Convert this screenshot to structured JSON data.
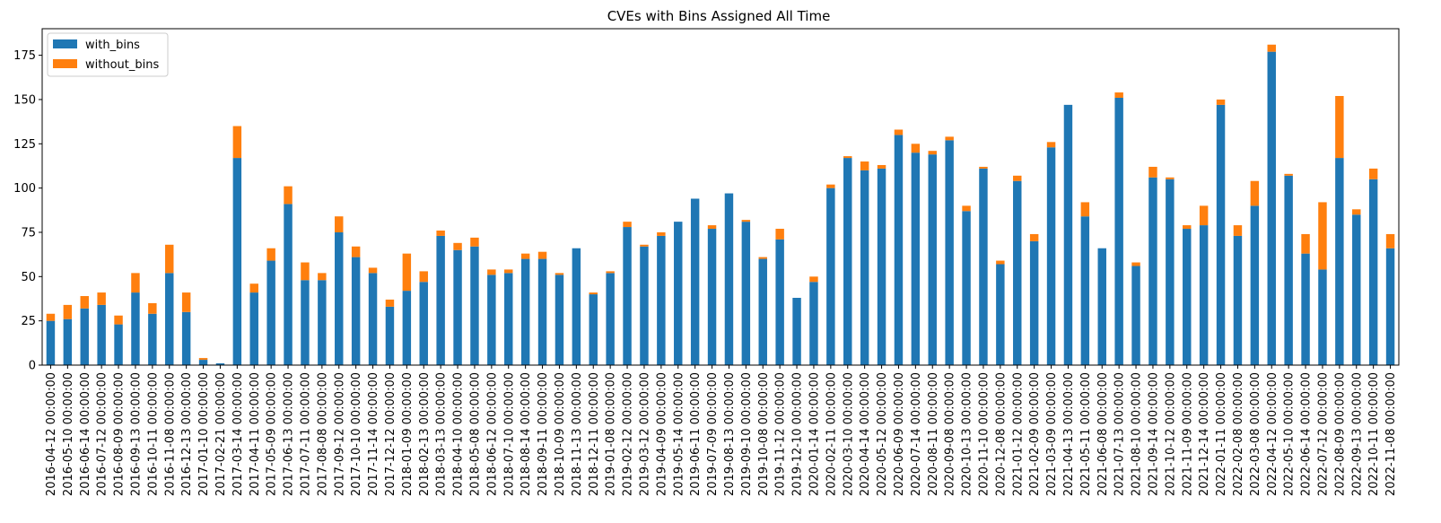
{
  "chart_data": {
    "type": "bar",
    "stacked": true,
    "title": "CVEs with Bins Assigned All Time",
    "xlabel": "",
    "ylabel": "",
    "ylim": [
      0,
      190
    ],
    "yticks": [
      0,
      25,
      50,
      75,
      100,
      125,
      150,
      175
    ],
    "grid": false,
    "legend": "top-left",
    "colors": {
      "with_bins": "#1f77b4",
      "without_bins": "#ff7f0e"
    },
    "categories": [
      "2016-04-12 00:00:00",
      "2016-05-10 00:00:00",
      "2016-06-14 00:00:00",
      "2016-07-12 00:00:00",
      "2016-08-09 00:00:00",
      "2016-09-13 00:00:00",
      "2016-10-11 00:00:00",
      "2016-11-08 00:00:00",
      "2016-12-13 00:00:00",
      "2017-01-10 00:00:00",
      "2017-02-21 00:00:00",
      "2017-03-14 00:00:00",
      "2017-04-11 00:00:00",
      "2017-05-09 00:00:00",
      "2017-06-13 00:00:00",
      "2017-07-11 00:00:00",
      "2017-08-08 00:00:00",
      "2017-09-12 00:00:00",
      "2017-10-10 00:00:00",
      "2017-11-14 00:00:00",
      "2017-12-12 00:00:00",
      "2018-01-09 00:00:00",
      "2018-02-13 00:00:00",
      "2018-03-13 00:00:00",
      "2018-04-10 00:00:00",
      "2018-05-08 00:00:00",
      "2018-06-12 00:00:00",
      "2018-07-10 00:00:00",
      "2018-08-14 00:00:00",
      "2018-09-11 00:00:00",
      "2018-10-09 00:00:00",
      "2018-11-13 00:00:00",
      "2018-12-11 00:00:00",
      "2019-01-08 00:00:00",
      "2019-02-12 00:00:00",
      "2019-03-12 00:00:00",
      "2019-04-09 00:00:00",
      "2019-05-14 00:00:00",
      "2019-06-11 00:00:00",
      "2019-07-09 00:00:00",
      "2019-08-13 00:00:00",
      "2019-09-10 00:00:00",
      "2019-10-08 00:00:00",
      "2019-11-12 00:00:00",
      "2019-12-10 00:00:00",
      "2020-01-14 00:00:00",
      "2020-02-11 00:00:00",
      "2020-03-10 00:00:00",
      "2020-04-14 00:00:00",
      "2020-05-12 00:00:00",
      "2020-06-09 00:00:00",
      "2020-07-14 00:00:00",
      "2020-08-11 00:00:00",
      "2020-09-08 00:00:00",
      "2020-10-13 00:00:00",
      "2020-11-10 00:00:00",
      "2020-12-08 00:00:00",
      "2021-01-12 00:00:00",
      "2021-02-09 00:00:00",
      "2021-03-09 00:00:00",
      "2021-04-13 00:00:00",
      "2021-05-11 00:00:00",
      "2021-06-08 00:00:00",
      "2021-07-13 00:00:00",
      "2021-08-10 00:00:00",
      "2021-09-14 00:00:00",
      "2021-10-12 00:00:00",
      "2021-11-09 00:00:00",
      "2021-12-14 00:00:00",
      "2022-01-11 00:00:00",
      "2022-02-08 00:00:00",
      "2022-03-08 00:00:00",
      "2022-04-12 00:00:00",
      "2022-05-10 00:00:00",
      "2022-06-14 00:00:00",
      "2022-07-12 00:00:00",
      "2022-08-09 00:00:00",
      "2022-09-13 00:00:00",
      "2022-10-11 00:00:00",
      "2022-11-08 00:00:00"
    ],
    "series": [
      {
        "name": "with_bins",
        "values": [
          25,
          26,
          32,
          34,
          23,
          41,
          29,
          52,
          30,
          3,
          1,
          117,
          41,
          59,
          91,
          48,
          48,
          75,
          61,
          52,
          33,
          42,
          47,
          73,
          65,
          67,
          51,
          52,
          60,
          60,
          51,
          66,
          40,
          52,
          78,
          67,
          73,
          81,
          94,
          77,
          97,
          81,
          60,
          71,
          38,
          47,
          100,
          117,
          110,
          111,
          130,
          120,
          119,
          127,
          87,
          111,
          57,
          104,
          70,
          123,
          147,
          84,
          66,
          151,
          56,
          106,
          105,
          77,
          79,
          147,
          73,
          90,
          177,
          107,
          63,
          54,
          117,
          85,
          105,
          66
        ]
      },
      {
        "name": "without_bins",
        "values": [
          4,
          8,
          7,
          7,
          5,
          11,
          6,
          16,
          11,
          1,
          0,
          18,
          5,
          7,
          10,
          10,
          4,
          9,
          6,
          3,
          4,
          21,
          6,
          3,
          4,
          5,
          3,
          2,
          3,
          4,
          1,
          0,
          1,
          1,
          3,
          1,
          2,
          0,
          0,
          2,
          0,
          1,
          1,
          6,
          0,
          3,
          2,
          1,
          5,
          2,
          3,
          5,
          2,
          2,
          3,
          1,
          2,
          3,
          4,
          3,
          0,
          8,
          0,
          3,
          2,
          6,
          1,
          2,
          11,
          3,
          6,
          14,
          4,
          1,
          11,
          38,
          35,
          3,
          6,
          8
        ]
      }
    ]
  }
}
